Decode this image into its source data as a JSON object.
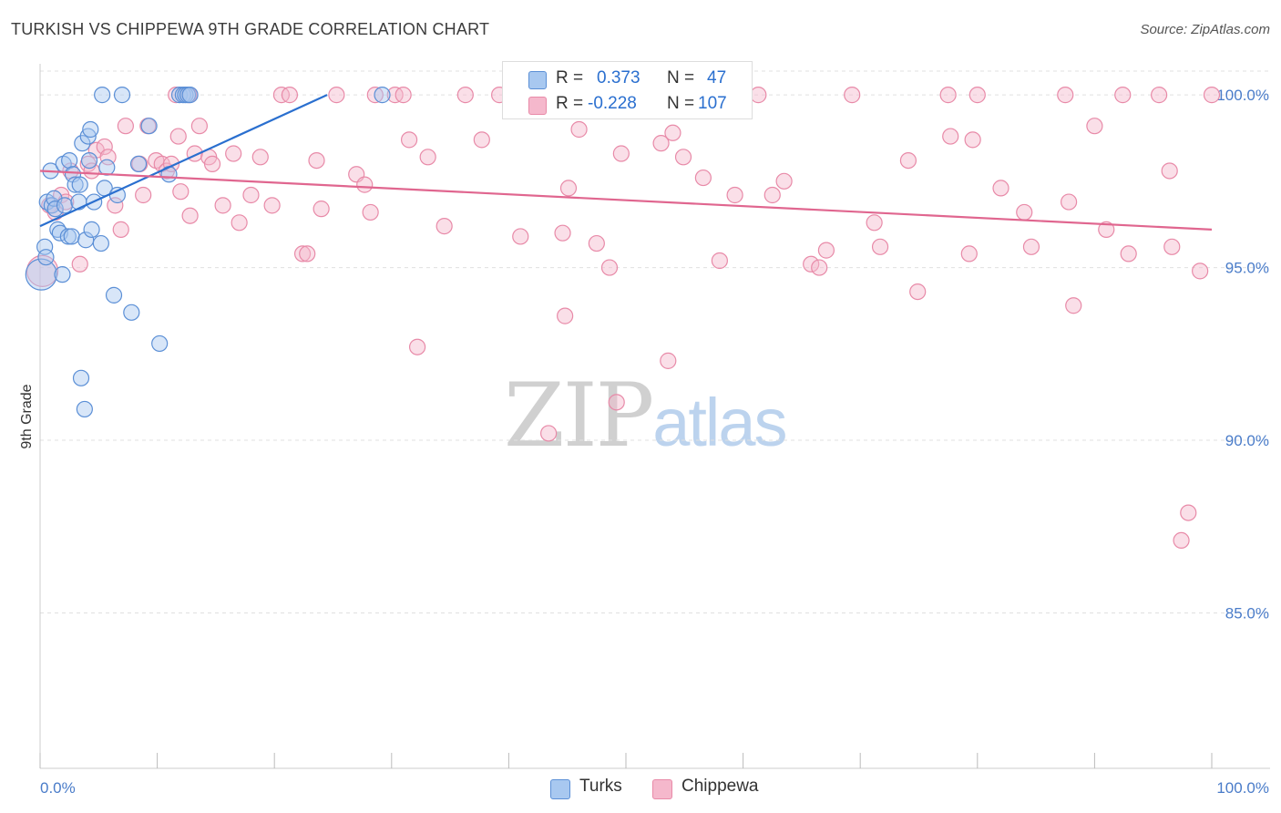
{
  "header": {
    "title": "TURKISH VS CHIPPEWA 9TH GRADE CORRELATION CHART",
    "source": "Source: ZipAtlas.com"
  },
  "watermark": {
    "zip": "ZIP",
    "atlas": "atlas"
  },
  "legend": {
    "rows": [
      {
        "r_label": "R =",
        "r_value": "0.373",
        "n_label": "N =",
        "n_value": "47"
      },
      {
        "r_label": "R =",
        "r_value": "-0.228",
        "n_label": "N =",
        "n_value": "107"
      }
    ]
  },
  "bottom_legend": {
    "turks": "Turks",
    "chippewa": "Chippewa"
  },
  "colors": {
    "turks_fill": "#a8c8f0",
    "turks_stroke": "#5b8fd6",
    "turks_line": "#2a6fcf",
    "chippewa_fill": "#f5b8cc",
    "chippewa_stroke": "#e88aa8",
    "chippewa_line": "#e0668f",
    "tick_text": "#4a7cc9",
    "grid": "#e0e0e0"
  },
  "chart_data": {
    "type": "scatter",
    "title": "TURKISH VS CHIPPEWA 9TH GRADE CORRELATION CHART",
    "xlabel": "",
    "ylabel": "9th Grade",
    "xlim": [
      0,
      100
    ],
    "ylim": [
      80.5,
      100.9
    ],
    "x_tick_labels": [
      "0.0%",
      "100.0%"
    ],
    "y_ticks": [
      {
        "value": 100.0,
        "label": "100.0%"
      },
      {
        "value": 95.0,
        "label": "95.0%"
      },
      {
        "value": 90.0,
        "label": "90.0%"
      },
      {
        "value": 85.0,
        "label": "85.0%"
      }
    ],
    "series": [
      {
        "name": "Turks",
        "r": 0.373,
        "n": 47,
        "trend": {
          "x": [
            0,
            24.5
          ],
          "y": [
            96.2,
            100.0
          ]
        },
        "points": [
          {
            "x": 0.1,
            "y": 94.8,
            "size": "large"
          },
          {
            "x": 0.4,
            "y": 95.6
          },
          {
            "x": 0.5,
            "y": 95.3
          },
          {
            "x": 0.6,
            "y": 96.9
          },
          {
            "x": 0.9,
            "y": 97.8
          },
          {
            "x": 1.0,
            "y": 96.8
          },
          {
            "x": 1.2,
            "y": 97.0
          },
          {
            "x": 1.3,
            "y": 96.7
          },
          {
            "x": 1.5,
            "y": 96.1
          },
          {
            "x": 1.7,
            "y": 96.0
          },
          {
            "x": 1.9,
            "y": 94.8
          },
          {
            "x": 2.0,
            "y": 98.0
          },
          {
            "x": 2.1,
            "y": 96.8
          },
          {
            "x": 2.4,
            "y": 95.9
          },
          {
            "x": 2.5,
            "y": 98.1
          },
          {
            "x": 2.7,
            "y": 95.9
          },
          {
            "x": 2.8,
            "y": 97.7
          },
          {
            "x": 3.0,
            "y": 97.4
          },
          {
            "x": 3.3,
            "y": 96.9
          },
          {
            "x": 3.4,
            "y": 97.4
          },
          {
            "x": 3.5,
            "y": 91.8
          },
          {
            "x": 3.6,
            "y": 98.6
          },
          {
            "x": 3.8,
            "y": 90.9
          },
          {
            "x": 3.9,
            "y": 95.8
          },
          {
            "x": 4.1,
            "y": 98.8
          },
          {
            "x": 4.2,
            "y": 98.1
          },
          {
            "x": 4.3,
            "y": 99.0
          },
          {
            "x": 4.4,
            "y": 96.1
          },
          {
            "x": 4.6,
            "y": 96.9
          },
          {
            "x": 5.2,
            "y": 95.7
          },
          {
            "x": 5.3,
            "y": 100.0
          },
          {
            "x": 5.5,
            "y": 97.3
          },
          {
            "x": 5.7,
            "y": 97.9
          },
          {
            "x": 6.3,
            "y": 94.2
          },
          {
            "x": 6.6,
            "y": 97.1
          },
          {
            "x": 7.0,
            "y": 100.0
          },
          {
            "x": 7.8,
            "y": 93.7
          },
          {
            "x": 8.4,
            "y": 98.0
          },
          {
            "x": 9.3,
            "y": 99.1
          },
          {
            "x": 10.2,
            "y": 92.8
          },
          {
            "x": 11.0,
            "y": 97.7
          },
          {
            "x": 11.9,
            "y": 100.0
          },
          {
            "x": 12.2,
            "y": 100.0
          },
          {
            "x": 12.4,
            "y": 100.0
          },
          {
            "x": 12.6,
            "y": 100.0
          },
          {
            "x": 12.8,
            "y": 100.0
          },
          {
            "x": 29.2,
            "y": 100.0
          }
        ]
      },
      {
        "name": "Chippewa",
        "r": -0.228,
        "n": 107,
        "trend": {
          "x": [
            0,
            100
          ],
          "y": [
            97.8,
            96.1
          ]
        },
        "points": [
          {
            "x": 0.2,
            "y": 94.9,
            "size": "large"
          },
          {
            "x": 0.8,
            "y": 96.8
          },
          {
            "x": 1.3,
            "y": 96.6
          },
          {
            "x": 1.8,
            "y": 97.1
          },
          {
            "x": 2.2,
            "y": 96.9
          },
          {
            "x": 2.6,
            "y": 97.8
          },
          {
            "x": 3.4,
            "y": 95.1
          },
          {
            "x": 4.1,
            "y": 98.0
          },
          {
            "x": 4.4,
            "y": 97.8
          },
          {
            "x": 4.8,
            "y": 98.4
          },
          {
            "x": 5.5,
            "y": 98.5
          },
          {
            "x": 5.8,
            "y": 98.2
          },
          {
            "x": 6.4,
            "y": 96.8
          },
          {
            "x": 6.9,
            "y": 96.1
          },
          {
            "x": 7.3,
            "y": 99.1
          },
          {
            "x": 8.5,
            "y": 98.0
          },
          {
            "x": 8.8,
            "y": 97.1
          },
          {
            "x": 9.9,
            "y": 98.1
          },
          {
            "x": 10.4,
            "y": 98.0
          },
          {
            "x": 10.8,
            "y": 97.8
          },
          {
            "x": 11.2,
            "y": 98.0
          },
          {
            "x": 11.6,
            "y": 100.0
          },
          {
            "x": 11.8,
            "y": 98.8
          },
          {
            "x": 12.0,
            "y": 97.2
          },
          {
            "x": 12.7,
            "y": 100.0
          },
          {
            "x": 12.8,
            "y": 96.5
          },
          {
            "x": 13.2,
            "y": 98.3
          },
          {
            "x": 13.6,
            "y": 99.1
          },
          {
            "x": 14.4,
            "y": 98.2
          },
          {
            "x": 14.7,
            "y": 98.0
          },
          {
            "x": 15.6,
            "y": 96.8
          },
          {
            "x": 16.5,
            "y": 98.3
          },
          {
            "x": 17.0,
            "y": 96.3
          },
          {
            "x": 18.0,
            "y": 97.1
          },
          {
            "x": 18.8,
            "y": 98.2
          },
          {
            "x": 19.8,
            "y": 96.8
          },
          {
            "x": 20.6,
            "y": 100.0
          },
          {
            "x": 21.3,
            "y": 100.0
          },
          {
            "x": 22.4,
            "y": 95.4
          },
          {
            "x": 22.8,
            "y": 95.4
          },
          {
            "x": 23.6,
            "y": 98.1
          },
          {
            "x": 24.0,
            "y": 96.7
          },
          {
            "x": 25.3,
            "y": 100.0
          },
          {
            "x": 27.0,
            "y": 97.7
          },
          {
            "x": 27.7,
            "y": 97.4
          },
          {
            "x": 28.2,
            "y": 96.6
          },
          {
            "x": 28.6,
            "y": 100.0
          },
          {
            "x": 30.3,
            "y": 100.0
          },
          {
            "x": 31.0,
            "y": 100.0
          },
          {
            "x": 31.5,
            "y": 98.7
          },
          {
            "x": 32.2,
            "y": 92.7
          },
          {
            "x": 33.1,
            "y": 98.2
          },
          {
            "x": 34.5,
            "y": 96.2
          },
          {
            "x": 36.3,
            "y": 100.0
          },
          {
            "x": 37.7,
            "y": 98.7
          },
          {
            "x": 39.2,
            "y": 100.0
          },
          {
            "x": 41.0,
            "y": 95.9
          },
          {
            "x": 42.5,
            "y": 100.0
          },
          {
            "x": 43.4,
            "y": 90.2
          },
          {
            "x": 44.6,
            "y": 96.0
          },
          {
            "x": 44.8,
            "y": 93.6
          },
          {
            "x": 45.1,
            "y": 97.3
          },
          {
            "x": 46.0,
            "y": 99.0
          },
          {
            "x": 47.5,
            "y": 95.7
          },
          {
            "x": 48.6,
            "y": 95.0
          },
          {
            "x": 49.2,
            "y": 91.1
          },
          {
            "x": 49.6,
            "y": 98.3
          },
          {
            "x": 52.0,
            "y": 100.0
          },
          {
            "x": 53.0,
            "y": 98.6
          },
          {
            "x": 53.6,
            "y": 92.3
          },
          {
            "x": 54.0,
            "y": 98.9
          },
          {
            "x": 54.9,
            "y": 98.2
          },
          {
            "x": 56.6,
            "y": 97.6
          },
          {
            "x": 58.0,
            "y": 95.2
          },
          {
            "x": 59.3,
            "y": 97.1
          },
          {
            "x": 61.3,
            "y": 100.0
          },
          {
            "x": 62.5,
            "y": 97.1
          },
          {
            "x": 63.5,
            "y": 97.5
          },
          {
            "x": 65.8,
            "y": 95.1
          },
          {
            "x": 66.5,
            "y": 95.0
          },
          {
            "x": 67.1,
            "y": 95.5
          },
          {
            "x": 69.3,
            "y": 100.0
          },
          {
            "x": 71.2,
            "y": 96.3
          },
          {
            "x": 71.7,
            "y": 95.6
          },
          {
            "x": 74.1,
            "y": 98.1
          },
          {
            "x": 74.9,
            "y": 94.3
          },
          {
            "x": 77.5,
            "y": 100.0
          },
          {
            "x": 77.7,
            "y": 98.8
          },
          {
            "x": 79.3,
            "y": 95.4
          },
          {
            "x": 79.6,
            "y": 98.7
          },
          {
            "x": 80.0,
            "y": 100.0
          },
          {
            "x": 82.0,
            "y": 97.3
          },
          {
            "x": 84.0,
            "y": 96.6
          },
          {
            "x": 84.6,
            "y": 95.6
          },
          {
            "x": 87.5,
            "y": 100.0
          },
          {
            "x": 87.8,
            "y": 96.9
          },
          {
            "x": 88.2,
            "y": 93.9
          },
          {
            "x": 90.0,
            "y": 99.1
          },
          {
            "x": 91.0,
            "y": 96.1
          },
          {
            "x": 92.4,
            "y": 100.0
          },
          {
            "x": 92.9,
            "y": 95.4
          },
          {
            "x": 95.5,
            "y": 100.0
          },
          {
            "x": 96.4,
            "y": 97.8
          },
          {
            "x": 96.6,
            "y": 95.6
          },
          {
            "x": 97.4,
            "y": 87.1
          },
          {
            "x": 98.0,
            "y": 87.9
          },
          {
            "x": 99.0,
            "y": 94.9
          },
          {
            "x": 100.0,
            "y": 100.0
          },
          {
            "x": 9.2,
            "y": 99.1
          }
        ]
      }
    ]
  }
}
